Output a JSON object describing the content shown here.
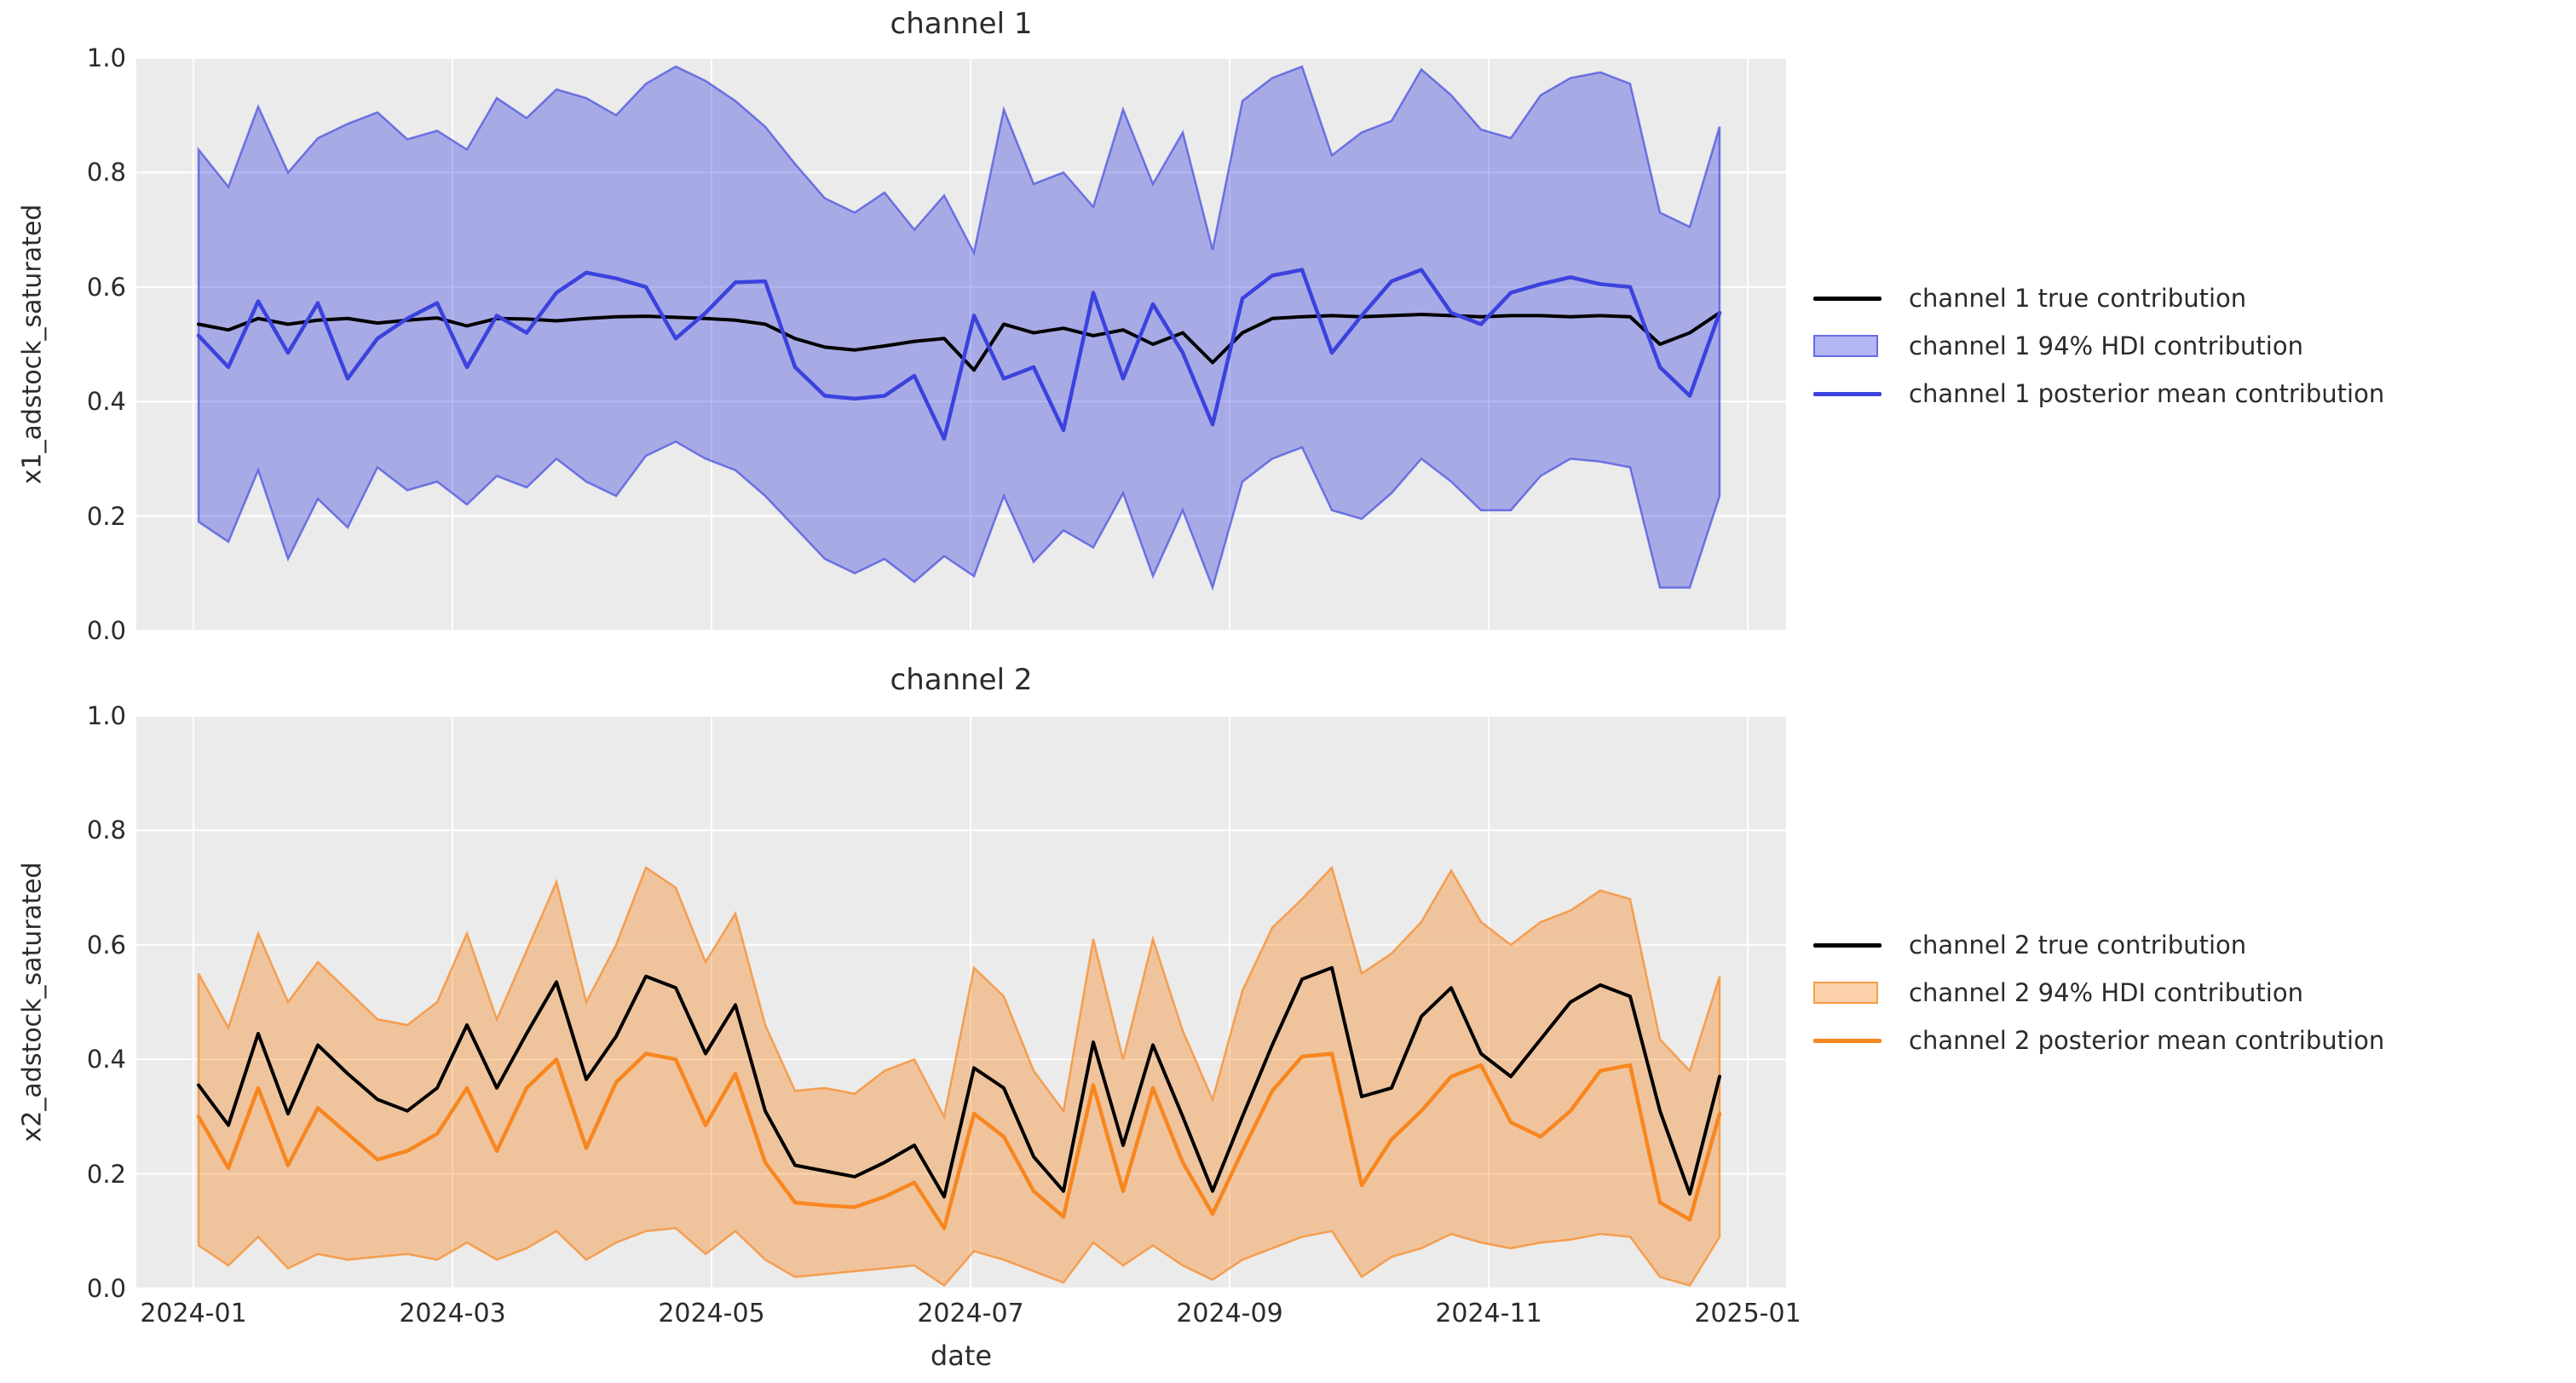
{
  "figure": {
    "background": "#ffffff",
    "axes_background": "#ebebeb",
    "grid_color": "#ffffff",
    "text_color": "#2b2b2b"
  },
  "x_axis": {
    "label": "date",
    "tick_labels": [
      "2024-01",
      "2024-03",
      "2024-05",
      "2024-07",
      "2024-09",
      "2024-11",
      "2025-01"
    ]
  },
  "y_tick_labels": [
    "1.0",
    "0.8",
    "0.6",
    "0.4",
    "0.2",
    "0.0"
  ],
  "charts": [
    {
      "title": "channel 1",
      "ylabel": "x1_adstock_saturated",
      "colors": {
        "true_line": "#000000",
        "mean_line": "#3b42dd",
        "band_fill": "rgba(59,66,221,0.38)",
        "band_edge": "rgba(59,66,221,0.65)"
      },
      "legend": [
        {
          "label": "channel 1 true contribution",
          "swatch": "line",
          "color": "#000000"
        },
        {
          "label": "channel 1 94% HDI contribution",
          "swatch": "patch",
          "color": "#3b42dd"
        },
        {
          "label": "channel 1 posterior mean contribution",
          "swatch": "line",
          "color": "#3b42dd"
        }
      ]
    },
    {
      "title": "channel 2",
      "ylabel": "x2_adstock_saturated",
      "colors": {
        "true_line": "#000000",
        "mean_line": "#f8861f",
        "band_fill": "rgba(248,134,31,0.38)",
        "band_edge": "rgba(248,134,31,0.7)"
      },
      "legend": [
        {
          "label": "channel 2 true contribution",
          "swatch": "line",
          "color": "#000000"
        },
        {
          "label": "channel 2 94% HDI contribution",
          "swatch": "patch",
          "color": "#f8861f"
        },
        {
          "label": "channel 2 posterior mean contribution",
          "swatch": "line",
          "color": "#f8861f"
        }
      ]
    }
  ],
  "chart_data": [
    {
      "type": "line",
      "title": "channel 1",
      "xlabel": "date",
      "ylabel": "x1_adstock_saturated",
      "ylim": [
        0.0,
        1.0
      ],
      "grid": true,
      "legend_position": "right",
      "x": {
        "start": "2024-01-01",
        "interval_days": 7,
        "count": 52,
        "end": "2024-12-23"
      },
      "series": {
        "true_contribution": [
          0.535,
          0.525,
          0.545,
          0.535,
          0.542,
          0.545,
          0.537,
          0.542,
          0.546,
          0.532,
          0.545,
          0.544,
          0.541,
          0.545,
          0.548,
          0.549,
          0.547,
          0.545,
          0.542,
          0.535,
          0.51,
          0.495,
          0.49,
          0.497,
          0.505,
          0.51,
          0.455,
          0.535,
          0.52,
          0.528,
          0.515,
          0.525,
          0.5,
          0.52,
          0.468,
          0.52,
          0.545,
          0.548,
          0.55,
          0.548,
          0.55,
          0.552,
          0.55,
          0.548,
          0.55,
          0.55,
          0.548,
          0.55,
          0.548,
          0.5,
          0.52,
          0.555
        ],
        "posterior_mean": [
          0.515,
          0.46,
          0.575,
          0.485,
          0.572,
          0.44,
          0.51,
          0.545,
          0.572,
          0.46,
          0.55,
          0.52,
          0.59,
          0.625,
          0.615,
          0.6,
          0.51,
          0.555,
          0.608,
          0.61,
          0.46,
          0.41,
          0.405,
          0.41,
          0.445,
          0.335,
          0.55,
          0.44,
          0.46,
          0.35,
          0.59,
          0.44,
          0.57,
          0.485,
          0.36,
          0.58,
          0.62,
          0.63,
          0.485,
          0.55,
          0.61,
          0.63,
          0.555,
          0.535,
          0.59,
          0.605,
          0.617,
          0.605,
          0.6,
          0.46,
          0.41,
          0.555
        ],
        "hdi_94_upper": [
          0.84,
          0.775,
          0.915,
          0.8,
          0.86,
          0.885,
          0.905,
          0.858,
          0.873,
          0.84,
          0.93,
          0.895,
          0.945,
          0.93,
          0.9,
          0.955,
          0.985,
          0.96,
          0.925,
          0.88,
          0.815,
          0.755,
          0.73,
          0.765,
          0.7,
          0.76,
          0.66,
          0.91,
          0.78,
          0.8,
          0.74,
          0.91,
          0.78,
          0.87,
          0.665,
          0.925,
          0.965,
          0.985,
          0.83,
          0.87,
          0.89,
          0.98,
          0.935,
          0.875,
          0.86,
          0.935,
          0.965,
          0.975,
          0.955,
          0.73,
          0.705,
          0.88
        ],
        "hdi_94_lower": [
          0.19,
          0.155,
          0.28,
          0.125,
          0.23,
          0.18,
          0.285,
          0.245,
          0.26,
          0.22,
          0.27,
          0.25,
          0.3,
          0.26,
          0.235,
          0.305,
          0.33,
          0.3,
          0.28,
          0.235,
          0.18,
          0.125,
          0.1,
          0.125,
          0.085,
          0.13,
          0.095,
          0.235,
          0.12,
          0.175,
          0.145,
          0.24,
          0.095,
          0.21,
          0.075,
          0.26,
          0.3,
          0.32,
          0.21,
          0.195,
          0.24,
          0.3,
          0.26,
          0.21,
          0.21,
          0.27,
          0.3,
          0.295,
          0.285,
          0.075,
          0.075,
          0.235
        ]
      }
    },
    {
      "type": "line",
      "title": "channel 2",
      "xlabel": "date",
      "ylabel": "x2_adstock_saturated",
      "ylim": [
        0.0,
        1.0
      ],
      "grid": true,
      "legend_position": "right",
      "x": {
        "start": "2024-01-01",
        "interval_days": 7,
        "count": 52,
        "end": "2024-12-23"
      },
      "series": {
        "true_contribution": [
          0.355,
          0.285,
          0.445,
          0.305,
          0.425,
          0.375,
          0.33,
          0.31,
          0.35,
          0.46,
          0.35,
          0.445,
          0.535,
          0.365,
          0.44,
          0.545,
          0.525,
          0.41,
          0.495,
          0.31,
          0.215,
          0.205,
          0.195,
          0.22,
          0.25,
          0.16,
          0.385,
          0.35,
          0.23,
          0.17,
          0.43,
          0.25,
          0.425,
          0.3,
          0.17,
          0.3,
          0.425,
          0.54,
          0.56,
          0.335,
          0.35,
          0.475,
          0.525,
          0.41,
          0.37,
          0.435,
          0.5,
          0.53,
          0.51,
          0.31,
          0.165,
          0.37
        ],
        "posterior_mean": [
          0.3,
          0.21,
          0.35,
          0.215,
          0.315,
          0.27,
          0.225,
          0.24,
          0.27,
          0.35,
          0.24,
          0.35,
          0.4,
          0.245,
          0.36,
          0.41,
          0.4,
          0.285,
          0.375,
          0.22,
          0.15,
          0.145,
          0.142,
          0.16,
          0.185,
          0.105,
          0.305,
          0.265,
          0.17,
          0.125,
          0.355,
          0.17,
          0.35,
          0.22,
          0.13,
          0.24,
          0.345,
          0.405,
          0.41,
          0.18,
          0.26,
          0.31,
          0.37,
          0.39,
          0.29,
          0.265,
          0.31,
          0.38,
          0.39,
          0.15,
          0.12,
          0.305
        ],
        "hdi_94_upper": [
          0.55,
          0.455,
          0.62,
          0.5,
          0.57,
          0.52,
          0.47,
          0.46,
          0.5,
          0.62,
          0.47,
          0.59,
          0.71,
          0.5,
          0.6,
          0.735,
          0.7,
          0.57,
          0.655,
          0.46,
          0.345,
          0.35,
          0.34,
          0.38,
          0.4,
          0.3,
          0.56,
          0.51,
          0.38,
          0.31,
          0.61,
          0.4,
          0.61,
          0.45,
          0.33,
          0.52,
          0.63,
          0.68,
          0.735,
          0.55,
          0.585,
          0.64,
          0.73,
          0.64,
          0.6,
          0.64,
          0.66,
          0.695,
          0.68,
          0.435,
          0.38,
          0.545
        ],
        "hdi_94_lower": [
          0.075,
          0.04,
          0.09,
          0.035,
          0.06,
          0.05,
          0.055,
          0.06,
          0.05,
          0.08,
          0.05,
          0.07,
          0.1,
          0.05,
          0.08,
          0.1,
          0.105,
          0.06,
          0.1,
          0.05,
          0.02,
          0.025,
          0.03,
          0.035,
          0.04,
          0.005,
          0.065,
          0.05,
          0.03,
          0.01,
          0.08,
          0.04,
          0.075,
          0.04,
          0.015,
          0.05,
          0.07,
          0.09,
          0.1,
          0.02,
          0.055,
          0.07,
          0.095,
          0.08,
          0.07,
          0.08,
          0.085,
          0.095,
          0.09,
          0.02,
          0.005,
          0.09
        ]
      }
    }
  ]
}
